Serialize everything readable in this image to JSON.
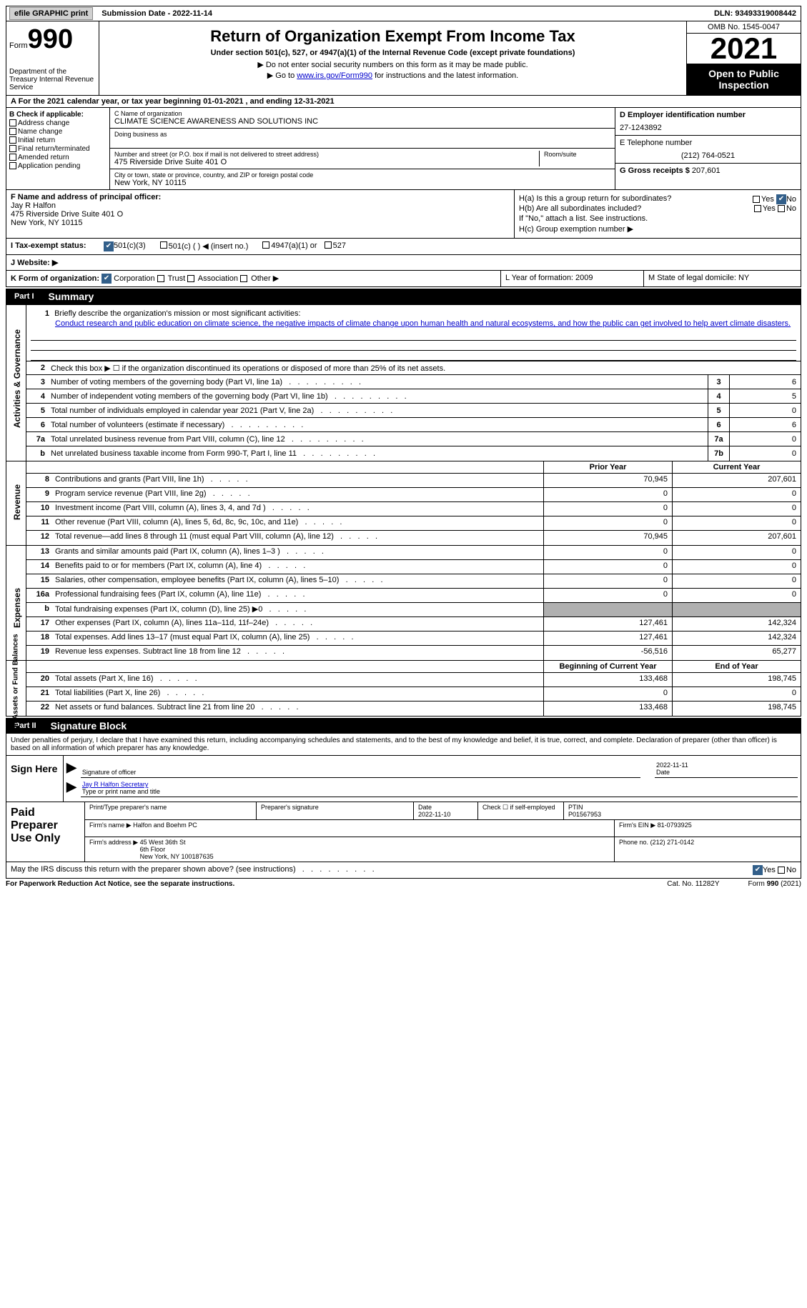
{
  "top": {
    "efile": "efile GRAPHIC print",
    "submission": "Submission Date - 2022-11-14",
    "dln": "DLN: 93493319008442"
  },
  "header": {
    "form_label": "Form",
    "form_number": "990",
    "dept": "Department of the Treasury Internal Revenue Service",
    "title": "Return of Organization Exempt From Income Tax",
    "subtitle": "Under section 501(c), 527, or 4947(a)(1) of the Internal Revenue Code (except private foundations)",
    "note1": "▶ Do not enter social security numbers on this form as it may be made public.",
    "note2_pre": "▶ Go to ",
    "note2_link": "www.irs.gov/Form990",
    "note2_post": " for instructions and the latest information.",
    "omb": "OMB No. 1545-0047",
    "year": "2021",
    "open": "Open to Public Inspection"
  },
  "section_a": "A For the 2021 calendar year, or tax year beginning 01-01-2021   , and ending 12-31-2021",
  "col_b": {
    "label": "B Check if applicable:",
    "items": [
      "Address change",
      "Name change",
      "Initial return",
      "Final return/terminated",
      "Amended return",
      "Application pending"
    ]
  },
  "col_c": {
    "name_label": "C Name of organization",
    "name": "CLIMATE SCIENCE AWARENESS AND SOLUTIONS INC",
    "dba_label": "Doing business as",
    "addr_label": "Number and street (or P.O. box if mail is not delivered to street address)",
    "room_label": "Room/suite",
    "addr": "475 Riverside Drive Suite 401 O",
    "city_label": "City or town, state or province, country, and ZIP or foreign postal code",
    "city": "New York, NY  10115"
  },
  "col_d": {
    "ein_label": "D Employer identification number",
    "ein": "27-1243892",
    "tel_label": "E Telephone number",
    "tel": "(212) 764-0521",
    "gross_label": "G Gross receipts $",
    "gross": "207,601"
  },
  "row_f": {
    "label": "F  Name and address of principal officer:",
    "name": "Jay R Halfon",
    "addr1": "475 Riverside Drive Suite 401 O",
    "addr2": "New York, NY  10115"
  },
  "row_h": {
    "ha": "H(a)  Is this a group return for subordinates?",
    "hb": "H(b)  Are all subordinates included?",
    "note": "If \"No,\" attach a list. See instructions.",
    "hc": "H(c)  Group exemption number ▶",
    "yes": "Yes",
    "no": "No"
  },
  "row_i": {
    "label": "I   Tax-exempt status:",
    "opts": [
      "501(c)(3)",
      "501(c) (  ) ◀ (insert no.)",
      "4947(a)(1) or",
      "527"
    ]
  },
  "row_j": "J   Website: ▶",
  "row_k": {
    "label": "K Form of organization:",
    "opts": [
      "Corporation",
      "Trust",
      "Association",
      "Other ▶"
    ],
    "l": "L Year of formation: 2009",
    "m": "M State of legal domicile: NY"
  },
  "parts": {
    "p1": "Part I",
    "p1t": "Summary",
    "p2": "Part II",
    "p2t": "Signature Block"
  },
  "summary": {
    "q1": "Briefly describe the organization's mission or most significant activities:",
    "mission": "Conduct research and public education on climate science, the negative impacts of climate change upon human health and natural ecosystems, and how the public can get involved to help avert climate disasters.",
    "q2": "Check this box ▶ ☐  if the organization discontinued its operations or disposed of more than 25% of its net assets.",
    "rows_gov": [
      {
        "n": "3",
        "t": "Number of voting members of the governing body (Part VI, line 1a)",
        "box": "3",
        "v": "6"
      },
      {
        "n": "4",
        "t": "Number of independent voting members of the governing body (Part VI, line 1b)",
        "box": "4",
        "v": "5"
      },
      {
        "n": "5",
        "t": "Total number of individuals employed in calendar year 2021 (Part V, line 2a)",
        "box": "5",
        "v": "0"
      },
      {
        "n": "6",
        "t": "Total number of volunteers (estimate if necessary)",
        "box": "6",
        "v": "6"
      },
      {
        "n": "7a",
        "t": "Total unrelated business revenue from Part VIII, column (C), line 12",
        "box": "7a",
        "v": "0"
      },
      {
        "n": "b",
        "t": "Net unrelated business taxable income from Form 990-T, Part I, line 11",
        "box": "7b",
        "v": "0"
      }
    ],
    "prior_label": "Prior Year",
    "curr_label": "Current Year",
    "revenue": [
      {
        "n": "8",
        "t": "Contributions and grants (Part VIII, line 1h)",
        "p": "70,945",
        "c": "207,601"
      },
      {
        "n": "9",
        "t": "Program service revenue (Part VIII, line 2g)",
        "p": "0",
        "c": "0"
      },
      {
        "n": "10",
        "t": "Investment income (Part VIII, column (A), lines 3, 4, and 7d )",
        "p": "0",
        "c": "0"
      },
      {
        "n": "11",
        "t": "Other revenue (Part VIII, column (A), lines 5, 6d, 8c, 9c, 10c, and 11e)",
        "p": "0",
        "c": "0"
      },
      {
        "n": "12",
        "t": "Total revenue—add lines 8 through 11 (must equal Part VIII, column (A), line 12)",
        "p": "70,945",
        "c": "207,601"
      }
    ],
    "expenses": [
      {
        "n": "13",
        "t": "Grants and similar amounts paid (Part IX, column (A), lines 1–3 )",
        "p": "0",
        "c": "0"
      },
      {
        "n": "14",
        "t": "Benefits paid to or for members (Part IX, column (A), line 4)",
        "p": "0",
        "c": "0"
      },
      {
        "n": "15",
        "t": "Salaries, other compensation, employee benefits (Part IX, column (A), lines 5–10)",
        "p": "0",
        "c": "0"
      },
      {
        "n": "16a",
        "t": "Professional fundraising fees (Part IX, column (A), line 11e)",
        "p": "0",
        "c": "0"
      },
      {
        "n": "b",
        "t": "Total fundraising expenses (Part IX, column (D), line 25) ▶0",
        "p": "shaded",
        "c": "shaded"
      },
      {
        "n": "17",
        "t": "Other expenses (Part IX, column (A), lines 11a–11d, 11f–24e)",
        "p": "127,461",
        "c": "142,324"
      },
      {
        "n": "18",
        "t": "Total expenses. Add lines 13–17 (must equal Part IX, column (A), line 25)",
        "p": "127,461",
        "c": "142,324"
      },
      {
        "n": "19",
        "t": "Revenue less expenses. Subtract line 18 from line 12",
        "p": "-56,516",
        "c": "65,277"
      }
    ],
    "begin_label": "Beginning of Current Year",
    "end_label": "End of Year",
    "netassets": [
      {
        "n": "20",
        "t": "Total assets (Part X, line 16)",
        "p": "133,468",
        "c": "198,745"
      },
      {
        "n": "21",
        "t": "Total liabilities (Part X, line 26)",
        "p": "0",
        "c": "0"
      },
      {
        "n": "22",
        "t": "Net assets or fund balances. Subtract line 21 from line 20",
        "p": "133,468",
        "c": "198,745"
      }
    ],
    "side_gov": "Activities & Governance",
    "side_rev": "Revenue",
    "side_exp": "Expenses",
    "side_net": "Net Assets or Fund Balances"
  },
  "sig": {
    "perjury": "Under penalties of perjury, I declare that I have examined this return, including accompanying schedules and statements, and to the best of my knowledge and belief, it is true, correct, and complete. Declaration of preparer (other than officer) is based on all information of which preparer has any knowledge.",
    "sign_here": "Sign Here",
    "sig_officer": "Signature of officer",
    "sig_date": "2022-11-11",
    "date_label": "Date",
    "name_title": "Jay R Halfon  Secretary",
    "type_label": "Type or print name and title"
  },
  "paid": {
    "label": "Paid Preparer Use Only",
    "h1": "Print/Type preparer's name",
    "h2": "Preparer's signature",
    "h3": "Date",
    "h3v": "2022-11-10",
    "h4": "Check ☐ if self-employed",
    "h5": "PTIN",
    "h5v": "P01567953",
    "firm_name_l": "Firm's name    ▶",
    "firm_name": "Halfon and Boehm PC",
    "firm_ein_l": "Firm's EIN ▶",
    "firm_ein": "81-0793925",
    "firm_addr_l": "Firm's address ▶",
    "firm_addr": "45 West 36th St\n6th Floor\nNew York, NY  100187635",
    "firm_phone_l": "Phone no.",
    "firm_phone": "(212) 271-0142"
  },
  "discuss": "May the IRS discuss this return with the preparer shown above? (see instructions)",
  "footer": {
    "left": "For Paperwork Reduction Act Notice, see the separate instructions.",
    "mid": "Cat. No. 11282Y",
    "right": "Form 990 (2021)"
  }
}
